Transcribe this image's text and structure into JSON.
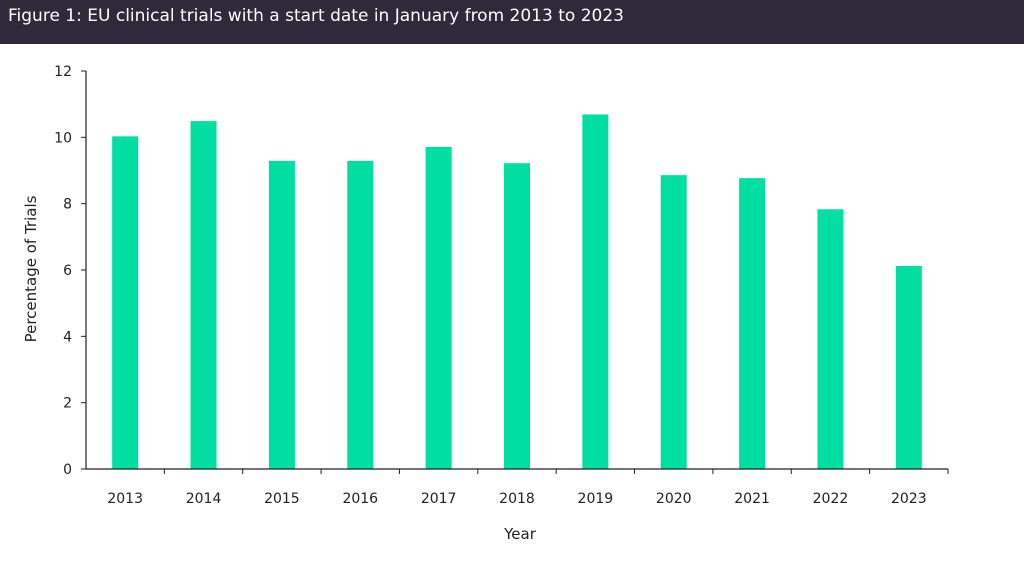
{
  "chart_data": {
    "type": "bar",
    "title": "Figure 1: EU clinical trials with a start date in January from 2013 to 2023",
    "xlabel": "Year",
    "ylabel": "Percentage of Trials",
    "categories": [
      "2013",
      "2014",
      "2015",
      "2016",
      "2017",
      "2018",
      "2019",
      "2020",
      "2021",
      "2022",
      "2023"
    ],
    "values": [
      10.03,
      10.49,
      9.29,
      9.29,
      9.71,
      9.22,
      10.69,
      8.86,
      8.77,
      7.83,
      6.12
    ],
    "ylim": [
      0,
      12
    ],
    "yticks": [
      0,
      2,
      4,
      6,
      8,
      10,
      12
    ],
    "grid": false,
    "bar_color": "#00dfa2",
    "header_color": "#2e293b"
  }
}
